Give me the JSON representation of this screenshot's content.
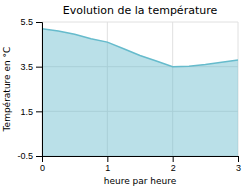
{
  "chart_data": {
    "type": "area",
    "title": "Evolution de la température",
    "xlabel": "heure par heure",
    "ylabel": "Température en °C",
    "x": [
      0,
      0.25,
      0.5,
      0.75,
      1.0,
      1.25,
      1.5,
      1.75,
      2.0,
      2.25,
      2.5,
      2.75,
      3.0
    ],
    "values": [
      5.2,
      5.1,
      4.95,
      4.75,
      4.6,
      4.3,
      4.0,
      3.75,
      3.5,
      3.52,
      3.6,
      3.7,
      3.8
    ],
    "color": "#66bbcc",
    "xlim": [
      0,
      3
    ],
    "ylim": [
      -0.5,
      5.5
    ],
    "xticks": [
      0,
      1,
      2,
      3
    ],
    "yticks": [
      -0.5,
      1.5,
      3.5,
      5.5
    ],
    "grid": true
  }
}
